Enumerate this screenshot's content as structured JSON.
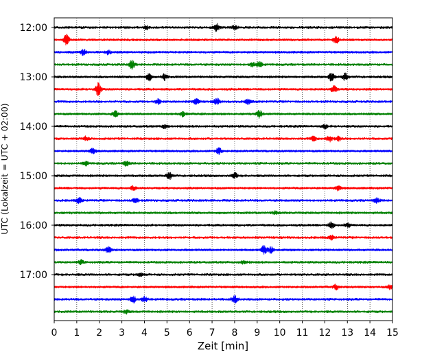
{
  "chart_data": {
    "type": "line",
    "title": "",
    "xlabel": "Zeit  [min]",
    "ylabel": "UTC (Lokalzeit = UTC + 02:00)",
    "xlim": [
      0,
      15
    ],
    "xticks": [
      0,
      1,
      2,
      3,
      4,
      5,
      6,
      7,
      8,
      9,
      10,
      11,
      12,
      13,
      14,
      15
    ],
    "vertical_grid": "dotted",
    "ytick_labels": [
      "12:00",
      "13:00",
      "14:00",
      "15:00",
      "16:00",
      "17:00"
    ],
    "trace_colors": [
      "#000000",
      "#ff0000",
      "#0000ff",
      "#008000"
    ],
    "trace_interval_min": 15,
    "traces": [
      {
        "start": "12:00",
        "color": "#000000",
        "bursts": [
          [
            4.1,
            0.5
          ],
          [
            7.2,
            1.0
          ],
          [
            8.0,
            0.6
          ]
        ]
      },
      {
        "start": "12:15",
        "color": "#ff0000",
        "bursts": [
          [
            0.55,
            1.3
          ],
          [
            12.5,
            0.8
          ]
        ]
      },
      {
        "start": "12:30",
        "color": "#0000ff",
        "bursts": [
          [
            1.3,
            0.7
          ],
          [
            2.4,
            0.5
          ]
        ]
      },
      {
        "start": "12:45",
        "color": "#008000",
        "bursts": [
          [
            3.45,
            1.1
          ],
          [
            8.8,
            0.6
          ],
          [
            9.1,
            0.7
          ]
        ]
      },
      {
        "start": "13:00",
        "color": "#000000",
        "bursts": [
          [
            4.2,
            0.9
          ],
          [
            4.9,
            0.8
          ],
          [
            12.3,
            1.0
          ],
          [
            12.9,
            0.9
          ]
        ]
      },
      {
        "start": "13:15",
        "color": "#ff0000",
        "bursts": [
          [
            1.95,
            1.6
          ],
          [
            12.4,
            0.9
          ]
        ]
      },
      {
        "start": "13:30",
        "color": "#0000ff",
        "bursts": [
          [
            4.6,
            0.6
          ],
          [
            6.3,
            0.8
          ],
          [
            7.2,
            0.8
          ],
          [
            8.6,
            0.6
          ]
        ]
      },
      {
        "start": "13:45",
        "color": "#008000",
        "bursts": [
          [
            2.7,
            0.8
          ],
          [
            5.7,
            0.6
          ],
          [
            9.1,
            0.9
          ]
        ]
      },
      {
        "start": "14:00",
        "color": "#000000",
        "bursts": [
          [
            4.9,
            0.5
          ],
          [
            12.0,
            0.5
          ]
        ]
      },
      {
        "start": "14:15",
        "color": "#ff0000",
        "bursts": [
          [
            1.4,
            0.5
          ],
          [
            11.5,
            0.6
          ],
          [
            12.2,
            0.8
          ],
          [
            12.6,
            0.6
          ]
        ]
      },
      {
        "start": "14:30",
        "color": "#0000ff",
        "bursts": [
          [
            1.7,
            0.7
          ],
          [
            7.3,
            0.8
          ]
        ]
      },
      {
        "start": "14:45",
        "color": "#008000",
        "bursts": [
          [
            1.4,
            0.5
          ],
          [
            3.2,
            0.6
          ]
        ]
      },
      {
        "start": "15:00",
        "color": "#000000",
        "bursts": [
          [
            5.1,
            0.9
          ],
          [
            8.0,
            0.7
          ]
        ]
      },
      {
        "start": "15:15",
        "color": "#ff0000",
        "bursts": [
          [
            3.5,
            0.5
          ],
          [
            12.6,
            0.6
          ]
        ]
      },
      {
        "start": "15:30",
        "color": "#0000ff",
        "bursts": [
          [
            1.1,
            0.7
          ],
          [
            3.6,
            0.6
          ],
          [
            14.3,
            0.6
          ]
        ]
      },
      {
        "start": "15:45",
        "color": "#008000",
        "bursts": [
          [
            9.8,
            0.4
          ]
        ]
      },
      {
        "start": "16:00",
        "color": "#000000",
        "bursts": [
          [
            12.3,
            0.8
          ],
          [
            13.0,
            0.5
          ]
        ]
      },
      {
        "start": "16:15",
        "color": "#ff0000",
        "bursts": [
          [
            12.3,
            0.5
          ]
        ]
      },
      {
        "start": "16:30",
        "color": "#0000ff",
        "bursts": [
          [
            2.4,
            0.8
          ],
          [
            9.3,
            1.0
          ],
          [
            9.6,
            0.7
          ]
        ]
      },
      {
        "start": "16:45",
        "color": "#008000",
        "bursts": [
          [
            1.2,
            0.5
          ],
          [
            8.4,
            0.4
          ]
        ]
      },
      {
        "start": "17:00",
        "color": "#000000",
        "bursts": [
          [
            3.8,
            0.4
          ]
        ]
      },
      {
        "start": "17:15",
        "color": "#ff0000",
        "bursts": [
          [
            12.5,
            0.6
          ],
          [
            14.9,
            0.5
          ]
        ]
      },
      {
        "start": "17:30",
        "color": "#0000ff",
        "bursts": [
          [
            3.5,
            0.9
          ],
          [
            4.0,
            0.8
          ],
          [
            8.0,
            0.9
          ]
        ]
      },
      {
        "start": "17:45",
        "color": "#008000",
        "bursts": [
          [
            3.2,
            0.4
          ]
        ]
      }
    ]
  }
}
